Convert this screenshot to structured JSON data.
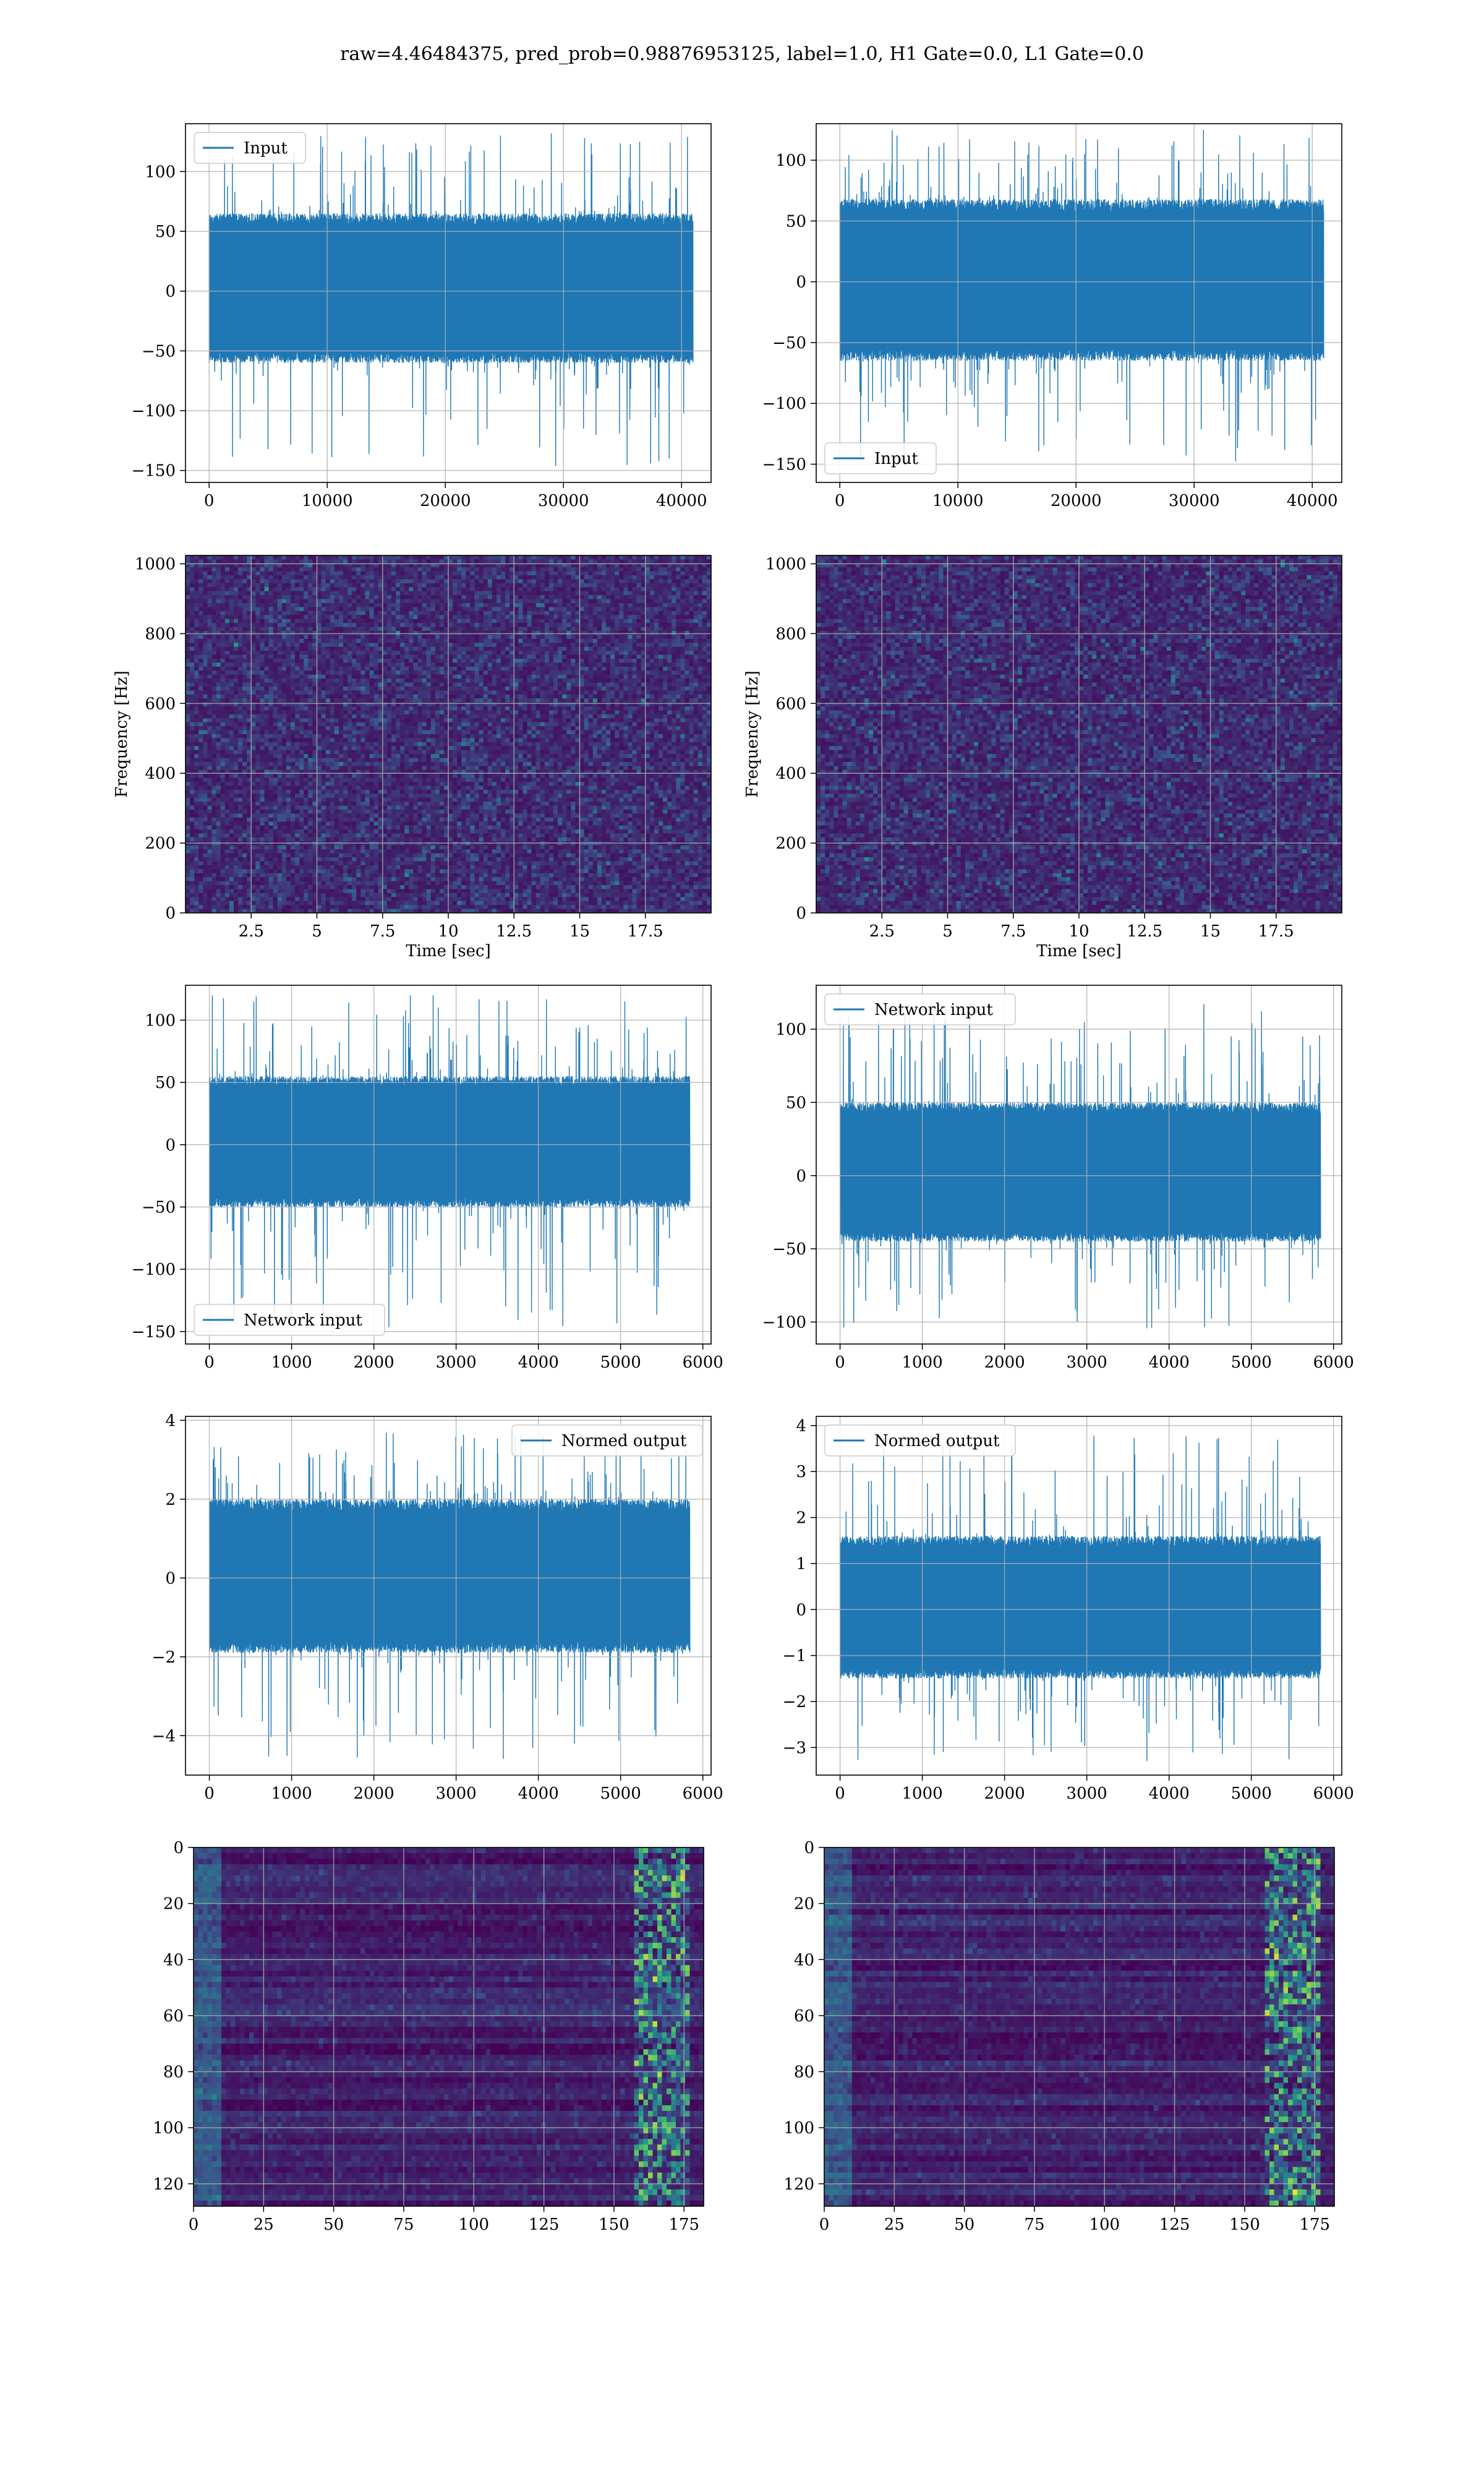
{
  "figure": {
    "title": "raw=4.46484375, pred_prob=0.98876953125, label=1.0, H1 Gate=0.0, L1 Gate=0.0"
  },
  "colors": {
    "line": "#1f77b4",
    "grid": "#b0b0b0",
    "viridis_low": "#440154",
    "viridis_mid": "#21918c",
    "viridis_high": "#fde725"
  },
  "chart_data": [
    {
      "id": "r0c0",
      "type": "line",
      "title": "",
      "xlabel": "",
      "ylabel": "",
      "xlim": [
        -2000,
        42500
      ],
      "ylim": [
        -160,
        140
      ],
      "xticks": [
        0,
        10000,
        20000,
        30000,
        40000
      ],
      "yticks": [
        -150,
        -100,
        -50,
        0,
        50,
        100
      ],
      "legend": {
        "label": "Input",
        "placement": "top-left"
      },
      "series": [
        {
          "name": "Input",
          "n": 40960,
          "band": [
            -60,
            65
          ],
          "spike_max": 132,
          "spike_min": -147
        }
      ],
      "grid": true
    },
    {
      "id": "r0c1",
      "type": "line",
      "title": "",
      "xlabel": "",
      "ylabel": "",
      "xlim": [
        -2000,
        42500
      ],
      "ylim": [
        -165,
        130
      ],
      "xticks": [
        0,
        10000,
        20000,
        30000,
        40000
      ],
      "yticks": [
        -150,
        -100,
        -50,
        0,
        50,
        100
      ],
      "legend": {
        "label": "Input",
        "placement": "bottom-left"
      },
      "series": [
        {
          "name": "Input",
          "n": 40960,
          "band": [
            -65,
            68
          ],
          "spike_max": 125,
          "spike_min": -148
        }
      ],
      "grid": true
    },
    {
      "id": "r1c0",
      "type": "heatmap",
      "title": "",
      "xlabel": "Time [sec]",
      "ylabel": "Frequency [Hz]",
      "xlim": [
        0,
        20
      ],
      "ylim": [
        0,
        1024
      ],
      "xticks": [
        2.5,
        5.0,
        7.5,
        10.0,
        12.5,
        15.0,
        17.5
      ],
      "yticks": [
        0,
        200,
        400,
        600,
        800,
        1000
      ],
      "grid": true,
      "colormap": "viridis"
    },
    {
      "id": "r1c1",
      "type": "heatmap",
      "title": "",
      "xlabel": "Time [sec]",
      "ylabel": "Frequency [Hz]",
      "xlim": [
        0,
        20
      ],
      "ylim": [
        0,
        1024
      ],
      "xticks": [
        2.5,
        5.0,
        7.5,
        10.0,
        12.5,
        15.0,
        17.5
      ],
      "yticks": [
        0,
        200,
        400,
        600,
        800,
        1000
      ],
      "grid": true,
      "colormap": "viridis"
    },
    {
      "id": "r2c0",
      "type": "line",
      "title": "",
      "xlabel": "",
      "ylabel": "",
      "xlim": [
        -290,
        6100
      ],
      "ylim": [
        -160,
        128
      ],
      "xticks": [
        0,
        1000,
        2000,
        3000,
        4000,
        5000,
        6000
      ],
      "yticks": [
        -150,
        -100,
        -50,
        0,
        50,
        100
      ],
      "legend": {
        "label": "Network input",
        "placement": "bottom-left"
      },
      "series": [
        {
          "name": "Network input",
          "n": 5840,
          "band": [
            -50,
            55
          ],
          "spike_max": 120,
          "spike_min": -147
        }
      ],
      "grid": true
    },
    {
      "id": "r2c1",
      "type": "line",
      "title": "",
      "xlabel": "",
      "ylabel": "",
      "xlim": [
        -290,
        6100
      ],
      "ylim": [
        -115,
        130
      ],
      "xticks": [
        0,
        1000,
        2000,
        3000,
        4000,
        5000,
        6000
      ],
      "yticks": [
        -100,
        -50,
        0,
        50,
        100
      ],
      "legend": {
        "label": "Network input",
        "placement": "top-left"
      },
      "series": [
        {
          "name": "Network input",
          "n": 5840,
          "band": [
            -45,
            50
          ],
          "spike_max": 118,
          "spike_min": -105
        }
      ],
      "grid": true
    },
    {
      "id": "r3c0",
      "type": "line",
      "title": "",
      "xlabel": "",
      "ylabel": "",
      "xlim": [
        -290,
        6100
      ],
      "ylim": [
        -5.0,
        4.1
      ],
      "xticks": [
        0,
        1000,
        2000,
        3000,
        4000,
        5000,
        6000
      ],
      "yticks": [
        -4,
        -2,
        0,
        2,
        4
      ],
      "legend": {
        "label": "Normed output",
        "placement": "top-right"
      },
      "series": [
        {
          "name": "Normed output",
          "n": 5840,
          "band": [
            -1.9,
            2.0
          ],
          "spike_max": 3.7,
          "spike_min": -4.6
        }
      ],
      "grid": true
    },
    {
      "id": "r3c1",
      "type": "line",
      "title": "",
      "xlabel": "",
      "ylabel": "",
      "xlim": [
        -290,
        6100
      ],
      "ylim": [
        -3.6,
        4.2
      ],
      "xticks": [
        0,
        1000,
        2000,
        3000,
        4000,
        5000,
        6000
      ],
      "yticks": [
        -3,
        -2,
        -1,
        0,
        1,
        2,
        3,
        4
      ],
      "legend": {
        "label": "Normed output",
        "placement": "top-left"
      },
      "series": [
        {
          "name": "Normed output",
          "n": 5840,
          "band": [
            -1.5,
            1.6
          ],
          "spike_max": 3.8,
          "spike_min": -3.3
        }
      ],
      "grid": true
    },
    {
      "id": "r4c0",
      "type": "heatmap",
      "title": "",
      "xlabel": "",
      "ylabel": "",
      "xlim": [
        0,
        182
      ],
      "ylim": [
        128,
        0
      ],
      "xticks": [
        0,
        25,
        50,
        75,
        100,
        125,
        150,
        175
      ],
      "yticks": [
        0,
        20,
        40,
        60,
        80,
        100,
        120
      ],
      "grid": true,
      "colormap": "viridis"
    },
    {
      "id": "r4c1",
      "type": "heatmap",
      "title": "",
      "xlabel": "",
      "ylabel": "",
      "xlim": [
        0,
        182
      ],
      "ylim": [
        128,
        0
      ],
      "xticks": [
        0,
        25,
        50,
        75,
        100,
        125,
        150,
        175
      ],
      "yticks": [
        0,
        20,
        40,
        60,
        80,
        100,
        120
      ],
      "grid": true,
      "colormap": "viridis"
    }
  ]
}
